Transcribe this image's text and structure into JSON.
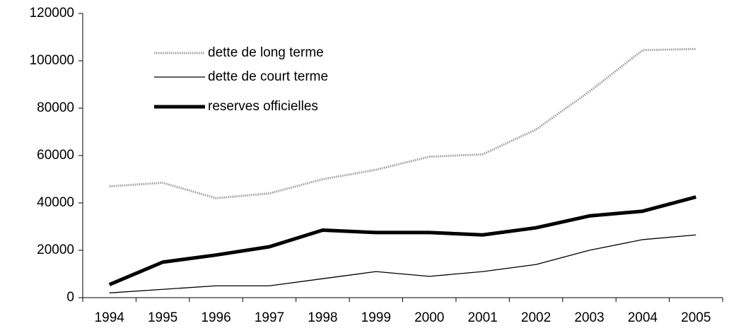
{
  "chart_data": {
    "type": "line",
    "categories": [
      "1994",
      "1995",
      "1996",
      "1997",
      "1998",
      "1999",
      "2000",
      "2001",
      "2002",
      "2003",
      "2004",
      "2005"
    ],
    "series": [
      {
        "name": "dette de  long terme",
        "color": "#999999",
        "line_width": 3,
        "style": "dotted",
        "values": [
          47000,
          48500,
          42000,
          44000,
          50000,
          54000,
          59500,
          60500,
          71000,
          87000,
          104500,
          105000
        ]
      },
      {
        "name": "dette de court terme",
        "color": "#000000",
        "line_width": 1.3,
        "style": "solid",
        "values": [
          2000,
          3500,
          5000,
          5000,
          8000,
          11000,
          9000,
          11000,
          14000,
          20000,
          24500,
          26500
        ]
      },
      {
        "name": "reserves officielles",
        "color": "#000000",
        "line_width": 5,
        "style": "solid",
        "values": [
          5500,
          15000,
          18000,
          21500,
          28500,
          27500,
          27500,
          26500,
          29500,
          34500,
          36500,
          42500
        ]
      }
    ],
    "ylim": [
      0,
      120000
    ],
    "yticks": [
      0,
      20000,
      40000,
      60000,
      80000,
      100000,
      120000
    ],
    "legend": "upper left"
  }
}
